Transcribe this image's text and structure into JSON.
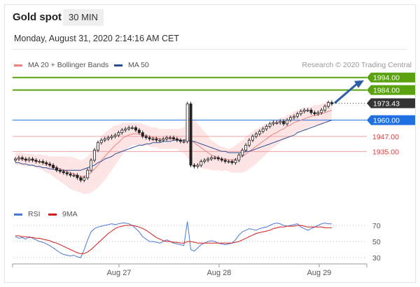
{
  "header": {
    "title": "Gold spot",
    "timeframe": "30 MIN",
    "datetime": "Monday, August 31, 2020 2:14:16 AM CET"
  },
  "legend": {
    "bollinger": "MA 20 + Bollinger Bands",
    "ma50": "MA 50",
    "credit": "Research © 2020 Trading Central"
  },
  "rsi_legend": {
    "rsi": "RSI",
    "ma": "9MA"
  },
  "colors": {
    "bollinger": "#f08080",
    "ma50": "#2a4e96",
    "target": "#5aa30f",
    "support": "#e03c3c",
    "current": "#333333",
    "ma50_box": "#1e6fe0",
    "rsi": "#4a78d8",
    "rsi_ma": "#d41a1a"
  },
  "chart_data": [
    {
      "type": "candlestick",
      "x_labels": [
        "Aug 27",
        "Aug 28",
        "Aug 29"
      ],
      "ylim": [
        1905,
        2000
      ],
      "levels": [
        {
          "value": 1994.0,
          "label": "1994.00",
          "kind": "target"
        },
        {
          "value": 1984.0,
          "label": "1984.00",
          "kind": "target"
        },
        {
          "value": 1973.43,
          "label": "1973.43",
          "kind": "current"
        },
        {
          "value": 1960.0,
          "label": "1960.00",
          "kind": "ma50"
        },
        {
          "value": 1947.0,
          "label": "1947.00",
          "kind": "support"
        },
        {
          "value": 1935.0,
          "label": "1935.00",
          "kind": "support"
        }
      ],
      "close": [
        1929,
        1930,
        1929,
        1928,
        1929,
        1928,
        1927,
        1927,
        1926,
        1925,
        1924,
        1922,
        1920,
        1919,
        1918,
        1917,
        1916,
        1916,
        1914,
        1912,
        1914,
        1920,
        1928,
        1936,
        1942,
        1944,
        1945,
        1946,
        1947,
        1948,
        1950,
        1952,
        1953,
        1954,
        1954,
        1952,
        1950,
        1947,
        1946,
        1945,
        1945,
        1944,
        1944,
        1945,
        1946,
        1946,
        1945,
        1944,
        1943,
        1943,
        1973,
        1924,
        1923,
        1924,
        1927,
        1928,
        1929,
        1930,
        1930,
        1929,
        1928,
        1927,
        1927,
        1926,
        1928,
        1932,
        1936,
        1940,
        1944,
        1947,
        1949,
        1951,
        1953,
        1955,
        1957,
        1958,
        1958,
        1959,
        1957,
        1960,
        1962,
        1963,
        1965,
        1967,
        1968,
        1968,
        1966,
        1965,
        1966,
        1968,
        1971,
        1974,
        1973
      ],
      "ma20": [
        1929,
        1929,
        1929,
        1928,
        1928,
        1928,
        1927,
        1927,
        1926,
        1925,
        1924,
        1923,
        1922,
        1921,
        1920,
        1919,
        1918,
        1917,
        1916,
        1915,
        1915,
        1916,
        1918,
        1921,
        1924,
        1928,
        1931,
        1934,
        1937,
        1940,
        1942,
        1945,
        1947,
        1948,
        1949,
        1949,
        1949,
        1948,
        1948,
        1947,
        1946,
        1946,
        1945,
        1945,
        1945,
        1945,
        1945,
        1945,
        1944,
        1944,
        1946,
        1944,
        1942,
        1940,
        1938,
        1936,
        1934,
        1932,
        1931,
        1930,
        1929,
        1929,
        1928,
        1928,
        1929,
        1930,
        1931,
        1933,
        1935,
        1937,
        1939,
        1941,
        1943,
        1945,
        1947,
        1949,
        1950,
        1952,
        1953,
        1955,
        1956,
        1958,
        1959,
        1960,
        1961,
        1962,
        1963,
        1964,
        1964,
        1965,
        1966,
        1967,
        1968
      ],
      "ma50": [
        1926,
        1926,
        1925,
        1925,
        1924,
        1924,
        1923,
        1923,
        1922,
        1922,
        1921,
        1921,
        1920,
        1920,
        1920,
        1920,
        1920,
        1920,
        1920,
        1920,
        1921,
        1922,
        1923,
        1924,
        1926,
        1927,
        1929,
        1930,
        1931,
        1933,
        1934,
        1935,
        1936,
        1937,
        1938,
        1939,
        1940,
        1940,
        1941,
        1941,
        1942,
        1942,
        1942,
        1943,
        1943,
        1943,
        1944,
        1944,
        1944,
        1944,
        1944,
        1943,
        1943,
        1942,
        1941,
        1940,
        1939,
        1938,
        1937,
        1936,
        1935,
        1935,
        1934,
        1934,
        1934,
        1934,
        1934,
        1935,
        1935,
        1936,
        1937,
        1938,
        1939,
        1940,
        1941,
        1942,
        1943,
        1944,
        1945,
        1946,
        1947,
        1948,
        1950,
        1951,
        1952,
        1953,
        1954,
        1955,
        1956,
        1957,
        1958,
        1959,
        1960
      ],
      "band_width": [
        5,
        5,
        5,
        5,
        5,
        5,
        5,
        6,
        6,
        7,
        7,
        8,
        9,
        10,
        11,
        12,
        13,
        13,
        13,
        13,
        14,
        15,
        16,
        17,
        18,
        19,
        19,
        18,
        17,
        16,
        14,
        13,
        11,
        10,
        9,
        9,
        9,
        9,
        8,
        8,
        8,
        8,
        8,
        8,
        8,
        8,
        8,
        8,
        9,
        10,
        16,
        18,
        18,
        17,
        16,
        15,
        13,
        12,
        11,
        10,
        10,
        9,
        9,
        10,
        11,
        12,
        13,
        14,
        14,
        14,
        14,
        13,
        13,
        12,
        11,
        11,
        10,
        10,
        9,
        9,
        9,
        9,
        9,
        9,
        9,
        8,
        8,
        8,
        8,
        8,
        8,
        8,
        8
      ]
    },
    {
      "type": "line",
      "name": "RSI",
      "ylim": [
        30,
        70
      ],
      "ticks": [
        30,
        50,
        70
      ],
      "rsi": [
        56,
        54,
        55,
        53,
        56,
        54,
        52,
        50,
        49,
        47,
        45,
        42,
        39,
        36,
        34,
        33,
        32,
        33,
        31,
        30,
        40,
        52,
        62,
        66,
        68,
        69,
        70,
        71,
        72,
        71,
        72,
        73,
        73,
        72,
        70,
        66,
        62,
        56,
        53,
        50,
        50,
        49,
        48,
        50,
        52,
        50,
        48,
        47,
        46,
        45,
        75,
        40,
        38,
        42,
        46,
        48,
        50,
        51,
        50,
        48,
        47,
        46,
        47,
        48,
        52,
        58,
        62,
        64,
        66,
        65,
        64,
        66,
        67,
        68,
        70,
        72,
        73,
        72,
        70,
        69,
        70,
        71,
        72,
        68,
        66,
        64,
        66,
        68,
        70,
        72,
        73,
        72,
        72
      ],
      "ma9": [
        57,
        57,
        56,
        56,
        55,
        55,
        54,
        54,
        53,
        52,
        51,
        49,
        48,
        46,
        44,
        42,
        40,
        38,
        36,
        35,
        35,
        37,
        40,
        44,
        48,
        52,
        56,
        60,
        63,
        66,
        68,
        69,
        70,
        70,
        70,
        69,
        68,
        66,
        64,
        61,
        58,
        55,
        53,
        51,
        50,
        50,
        49,
        49,
        48,
        48,
        50,
        50,
        49,
        48,
        48,
        48,
        48,
        48,
        48,
        48,
        48,
        48,
        48,
        48,
        49,
        50,
        52,
        54,
        56,
        58,
        60,
        61,
        62,
        63,
        64,
        66,
        67,
        68,
        68,
        69,
        69,
        69,
        70,
        70,
        69,
        68,
        68,
        68,
        68,
        68,
        67,
        67,
        67
      ]
    }
  ]
}
